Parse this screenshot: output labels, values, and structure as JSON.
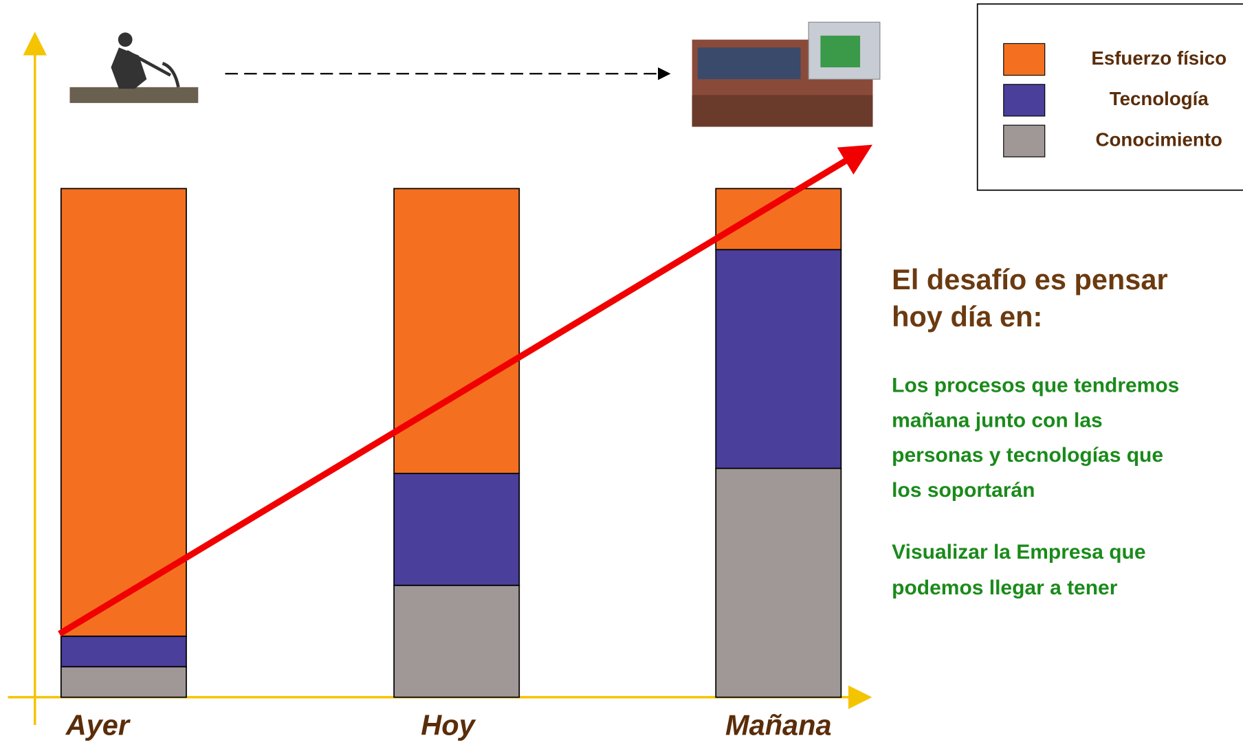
{
  "chart_data": {
    "type": "bar",
    "stacked": true,
    "categories": [
      "Ayer",
      "Hoy",
      "Mañana"
    ],
    "series": [
      {
        "name": "Conocimiento",
        "color": "#a09896",
        "values": [
          6,
          22,
          45
        ]
      },
      {
        "name": "Tecnología",
        "color": "#4a3f9a",
        "values": [
          6,
          22,
          43
        ]
      },
      {
        "name": "Esfuerzo físico",
        "color": "#f47020",
        "values": [
          88,
          56,
          12
        ]
      }
    ],
    "ylim": [
      0,
      100
    ],
    "annotations": {
      "heading": "El desafío es pensar hoy día en:",
      "paragraphs": [
        "Los procesos que tendremos  mañana junto con las personas y tecnologías que los soportarán",
        "Visualizar  la  Empresa que podemos llegar a tener"
      ]
    }
  }
}
